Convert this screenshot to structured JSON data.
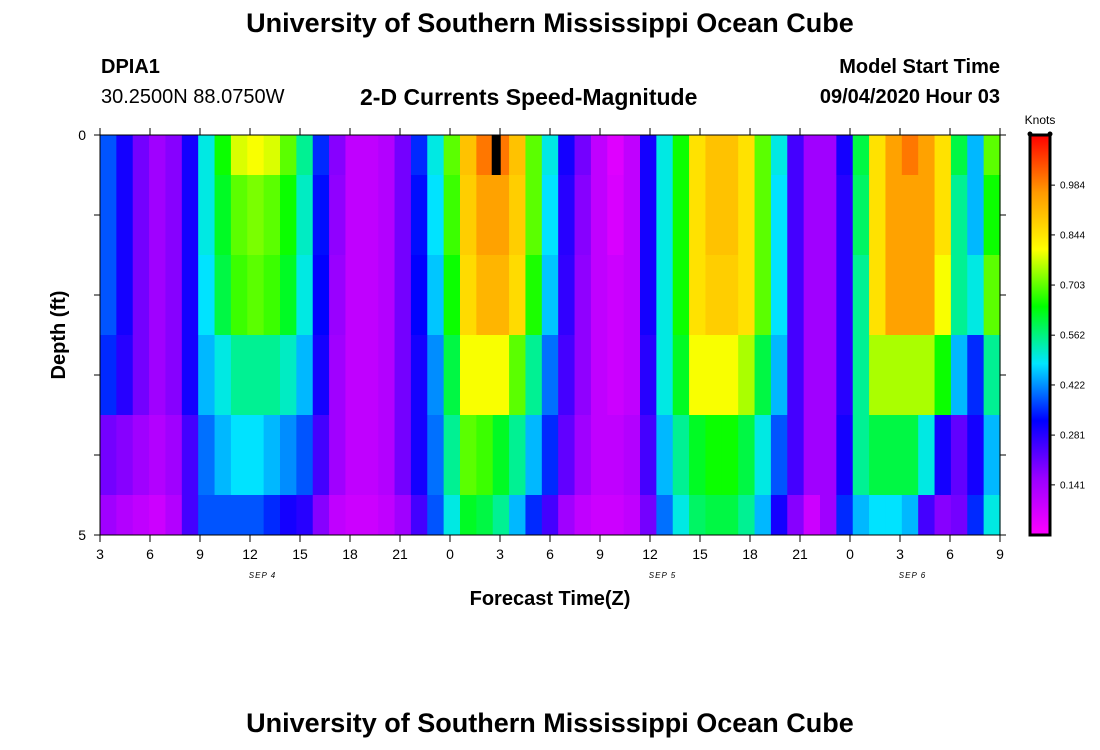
{
  "header": {
    "title": "University of Southern Mississippi Ocean Cube",
    "station_id": "DPIA1",
    "station_coords": "30.2500N 88.0750W",
    "chart_title": "2-D Currents Speed-Magnitude",
    "model_start_label": "Model Start Time",
    "model_start_value": "09/04/2020 Hour 03"
  },
  "footer": {
    "title": "University of Southern Mississippi Ocean Cube"
  },
  "chart_data": {
    "type": "heatmap",
    "title": "2-D Currents Speed-Magnitude",
    "xlabel": "Forecast Time(Z)",
    "ylabel": "Depth (ft)",
    "ylim": [
      0,
      5
    ],
    "y_tick_labels": [
      "0",
      "5"
    ],
    "x_tick_labels": [
      "3",
      "6",
      "9",
      "12",
      "15",
      "18",
      "21",
      "0",
      "3",
      "6",
      "9",
      "12",
      "15",
      "18",
      "21",
      "0",
      "3",
      "6",
      "9"
    ],
    "date_labels": [
      {
        "label": "SEP 4",
        "after_tick": 3
      },
      {
        "label": "SEP 5",
        "after_tick": 11
      },
      {
        "label": "SEP 6",
        "after_tick": 16
      }
    ],
    "colorbar": {
      "unit": "Knots",
      "min": 0,
      "max": 1.125,
      "tick_values": [
        0.141,
        0.281,
        0.422,
        0.562,
        0.703,
        0.844,
        0.984
      ],
      "tick_labels": [
        "0.141",
        "0.281",
        "0.422",
        "0.562",
        "0.703",
        "0.844",
        "0.984"
      ],
      "colors": [
        "#ff00ff",
        "#9900ff",
        "#0000ff",
        "#00e6ff",
        "#00ff00",
        "#ffff00",
        "#ff9900",
        "#ff0000"
      ]
    },
    "forecast_hours": [
      0,
      1,
      2,
      3,
      4,
      5,
      6,
      7,
      8,
      9,
      10,
      11,
      12,
      13,
      14,
      15,
      16,
      17,
      18,
      19,
      20,
      21,
      22,
      23,
      24,
      25,
      26,
      27,
      28,
      29,
      30,
      31,
      32,
      33,
      34,
      35,
      36,
      37,
      38,
      39,
      40,
      41,
      42,
      43,
      44,
      45,
      46,
      47,
      48,
      49,
      50,
      51,
      52,
      53,
      54
    ],
    "depth_layers": [
      0,
      0.5,
      1.5,
      2.5,
      3.5,
      4.5
    ],
    "speed_knots": [
      [
        0.38,
        0.3,
        0.2,
        0.15,
        0.18,
        0.3,
        0.5,
        0.65,
        0.78,
        0.8,
        0.78,
        0.7,
        0.55,
        0.35,
        0.18,
        0.1,
        0.1,
        0.12,
        0.2,
        0.35,
        0.5,
        0.7,
        0.9,
        1.0,
        1.0,
        0.9,
        0.7,
        0.5,
        0.3,
        0.2,
        0.1,
        0.05,
        0.1,
        0.3,
        0.5,
        0.65,
        0.85,
        0.9,
        0.9,
        0.85,
        0.7,
        0.5,
        0.25,
        0.15,
        0.15,
        0.3,
        0.6,
        0.85,
        0.95,
        1.0,
        0.95,
        0.85,
        0.6,
        0.45,
        0.7
      ],
      [
        0.38,
        0.3,
        0.2,
        0.15,
        0.18,
        0.3,
        0.5,
        0.62,
        0.7,
        0.72,
        0.7,
        0.65,
        0.52,
        0.33,
        0.17,
        0.1,
        0.1,
        0.12,
        0.2,
        0.33,
        0.48,
        0.68,
        0.88,
        0.95,
        0.95,
        0.88,
        0.7,
        0.48,
        0.28,
        0.18,
        0.1,
        0.06,
        0.1,
        0.3,
        0.5,
        0.65,
        0.85,
        0.9,
        0.9,
        0.85,
        0.7,
        0.48,
        0.25,
        0.15,
        0.15,
        0.28,
        0.58,
        0.85,
        0.95,
        0.95,
        0.95,
        0.85,
        0.55,
        0.45,
        0.65
      ],
      [
        0.38,
        0.3,
        0.2,
        0.15,
        0.18,
        0.3,
        0.48,
        0.6,
        0.68,
        0.7,
        0.68,
        0.62,
        0.5,
        0.32,
        0.16,
        0.1,
        0.1,
        0.12,
        0.2,
        0.32,
        0.46,
        0.65,
        0.86,
        0.92,
        0.92,
        0.86,
        0.66,
        0.46,
        0.27,
        0.17,
        0.1,
        0.08,
        0.1,
        0.3,
        0.5,
        0.65,
        0.85,
        0.88,
        0.88,
        0.85,
        0.7,
        0.48,
        0.25,
        0.15,
        0.15,
        0.28,
        0.55,
        0.85,
        0.95,
        0.95,
        0.95,
        0.8,
        0.55,
        0.5,
        0.7
      ],
      [
        0.35,
        0.28,
        0.2,
        0.15,
        0.18,
        0.3,
        0.45,
        0.5,
        0.55,
        0.55,
        0.55,
        0.52,
        0.45,
        0.3,
        0.15,
        0.1,
        0.1,
        0.12,
        0.2,
        0.3,
        0.42,
        0.6,
        0.8,
        0.8,
        0.8,
        0.7,
        0.55,
        0.4,
        0.25,
        0.17,
        0.1,
        0.08,
        0.1,
        0.28,
        0.5,
        0.62,
        0.8,
        0.8,
        0.8,
        0.75,
        0.6,
        0.45,
        0.25,
        0.15,
        0.15,
        0.28,
        0.55,
        0.75,
        0.75,
        0.75,
        0.75,
        0.65,
        0.45,
        0.35,
        0.55
      ],
      [
        0.2,
        0.18,
        0.15,
        0.12,
        0.15,
        0.25,
        0.4,
        0.45,
        0.48,
        0.48,
        0.45,
        0.42,
        0.38,
        0.25,
        0.15,
        0.1,
        0.1,
        0.12,
        0.2,
        0.3,
        0.4,
        0.55,
        0.7,
        0.68,
        0.62,
        0.55,
        0.45,
        0.35,
        0.22,
        0.15,
        0.1,
        0.1,
        0.12,
        0.25,
        0.45,
        0.55,
        0.62,
        0.65,
        0.65,
        0.6,
        0.5,
        0.38,
        0.25,
        0.15,
        0.15,
        0.3,
        0.55,
        0.6,
        0.6,
        0.6,
        0.5,
        0.3,
        0.22,
        0.3,
        0.45
      ],
      [
        0.15,
        0.12,
        0.1,
        0.08,
        0.12,
        0.25,
        0.38,
        0.38,
        0.38,
        0.38,
        0.35,
        0.3,
        0.28,
        0.18,
        0.1,
        0.08,
        0.08,
        0.1,
        0.15,
        0.25,
        0.38,
        0.5,
        0.62,
        0.6,
        0.55,
        0.45,
        0.35,
        0.25,
        0.15,
        0.1,
        0.08,
        0.08,
        0.1,
        0.2,
        0.4,
        0.5,
        0.58,
        0.6,
        0.6,
        0.55,
        0.45,
        0.3,
        0.18,
        0.08,
        0.15,
        0.35,
        0.45,
        0.48,
        0.48,
        0.45,
        0.25,
        0.18,
        0.2,
        0.35,
        0.5
      ]
    ],
    "marker": {
      "label": "",
      "hour": 24,
      "depth": [
        0,
        0.5
      ]
    }
  }
}
